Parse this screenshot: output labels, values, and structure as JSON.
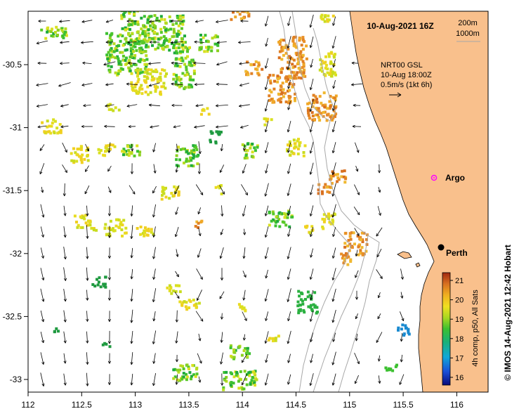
{
  "title": "10-Aug-2021 16Z",
  "depth_legend": [
    "200m",
    "1000m"
  ],
  "current_legend": {
    "line1": "NRT00 GSL",
    "line2": "10-Aug 18:00Z",
    "line3": "0.5m/s (1kt 6h)"
  },
  "credit": "© IMOS 14-Aug-2021 12:42 Hobart",
  "colorbar": {
    "label": "4h comp, p50, All Sats",
    "ticks": [
      "16",
      "17",
      "18",
      "19",
      "20",
      "21"
    ],
    "min": 15.6,
    "max": 21.4
  },
  "places": [
    {
      "name": "Perth",
      "lon": 115.86,
      "lat": -31.95,
      "marker": "black-dot"
    },
    {
      "name": "Argo",
      "lon": 115.76,
      "lat": -31.41,
      "marker": "magenta-circle"
    }
  ],
  "axes": {
    "x_ticks": [
      "112",
      "112.5",
      "113",
      "113.5",
      "114",
      "114.5",
      "115",
      "115.5",
      "116"
    ],
    "y_ticks": [
      "-30.5",
      "-31",
      "-31.5",
      "-32",
      "-32.5",
      "-33"
    ],
    "lon_range": [
      112,
      116.3
    ],
    "lat_range": [
      -33.1,
      -30.05
    ]
  },
  "colors": {
    "land": "#f9c08c",
    "ocean": "#ffffff",
    "bathymetry": "#a8a8a8"
  }
}
